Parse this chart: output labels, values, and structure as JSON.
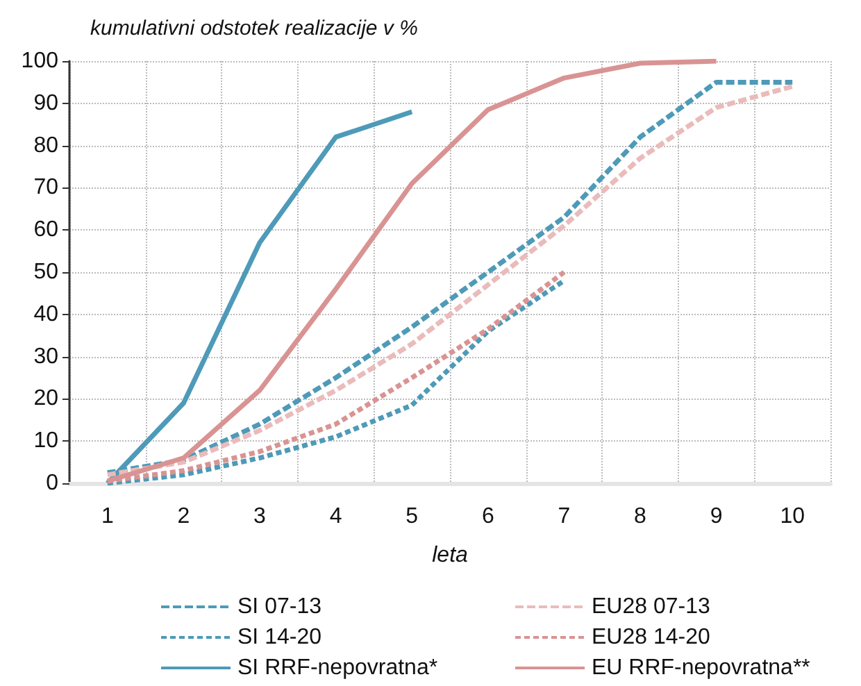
{
  "chart_data": {
    "type": "line",
    "title": "kumulativni odstotek realizacije v %",
    "xlabel": "leta",
    "categories": [
      "1",
      "2",
      "3",
      "4",
      "5",
      "6",
      "7",
      "8",
      "9",
      "10"
    ],
    "ylim": [
      0,
      100
    ],
    "yticks": [
      0,
      10,
      20,
      30,
      40,
      50,
      60,
      70,
      80,
      90,
      100
    ],
    "grid": true,
    "legend": "bottom",
    "marker": "none",
    "series": [
      {
        "name": "SI 07-13",
        "color": "#4e9ab8",
        "line_style": "dashed",
        "values": [
          2.5,
          5.5,
          14,
          25,
          37,
          50,
          63,
          82,
          95,
          95
        ]
      },
      {
        "name": "SI 14-20",
        "color": "#4e9ab8",
        "line_style": "dotted",
        "values": [
          0,
          2,
          6,
          11,
          18.5,
          36,
          48,
          null,
          null,
          null
        ]
      },
      {
        "name": "SI RRF-nepovratna*",
        "color": "#4e9ab8",
        "line_style": "solid",
        "values": [
          0,
          19,
          57,
          82,
          88,
          null,
          null,
          null,
          null,
          null
        ]
      },
      {
        "name": "EU28 07-13",
        "color": "#eabbbb",
        "line_style": "dashed",
        "values": [
          2,
          5,
          12.5,
          22,
          33,
          47,
          61,
          77,
          89,
          94
        ]
      },
      {
        "name": "EU28 14-20",
        "color": "#d99393",
        "line_style": "dotted",
        "values": [
          0.5,
          3,
          7.5,
          14,
          25,
          36.5,
          50,
          null,
          null,
          null
        ]
      },
      {
        "name": "EU RRF-nepovratna**",
        "color": "#d99393",
        "line_style": "solid",
        "values": [
          0.5,
          6,
          22,
          46,
          71,
          88.5,
          96,
          99.5,
          100,
          null
        ]
      }
    ]
  }
}
